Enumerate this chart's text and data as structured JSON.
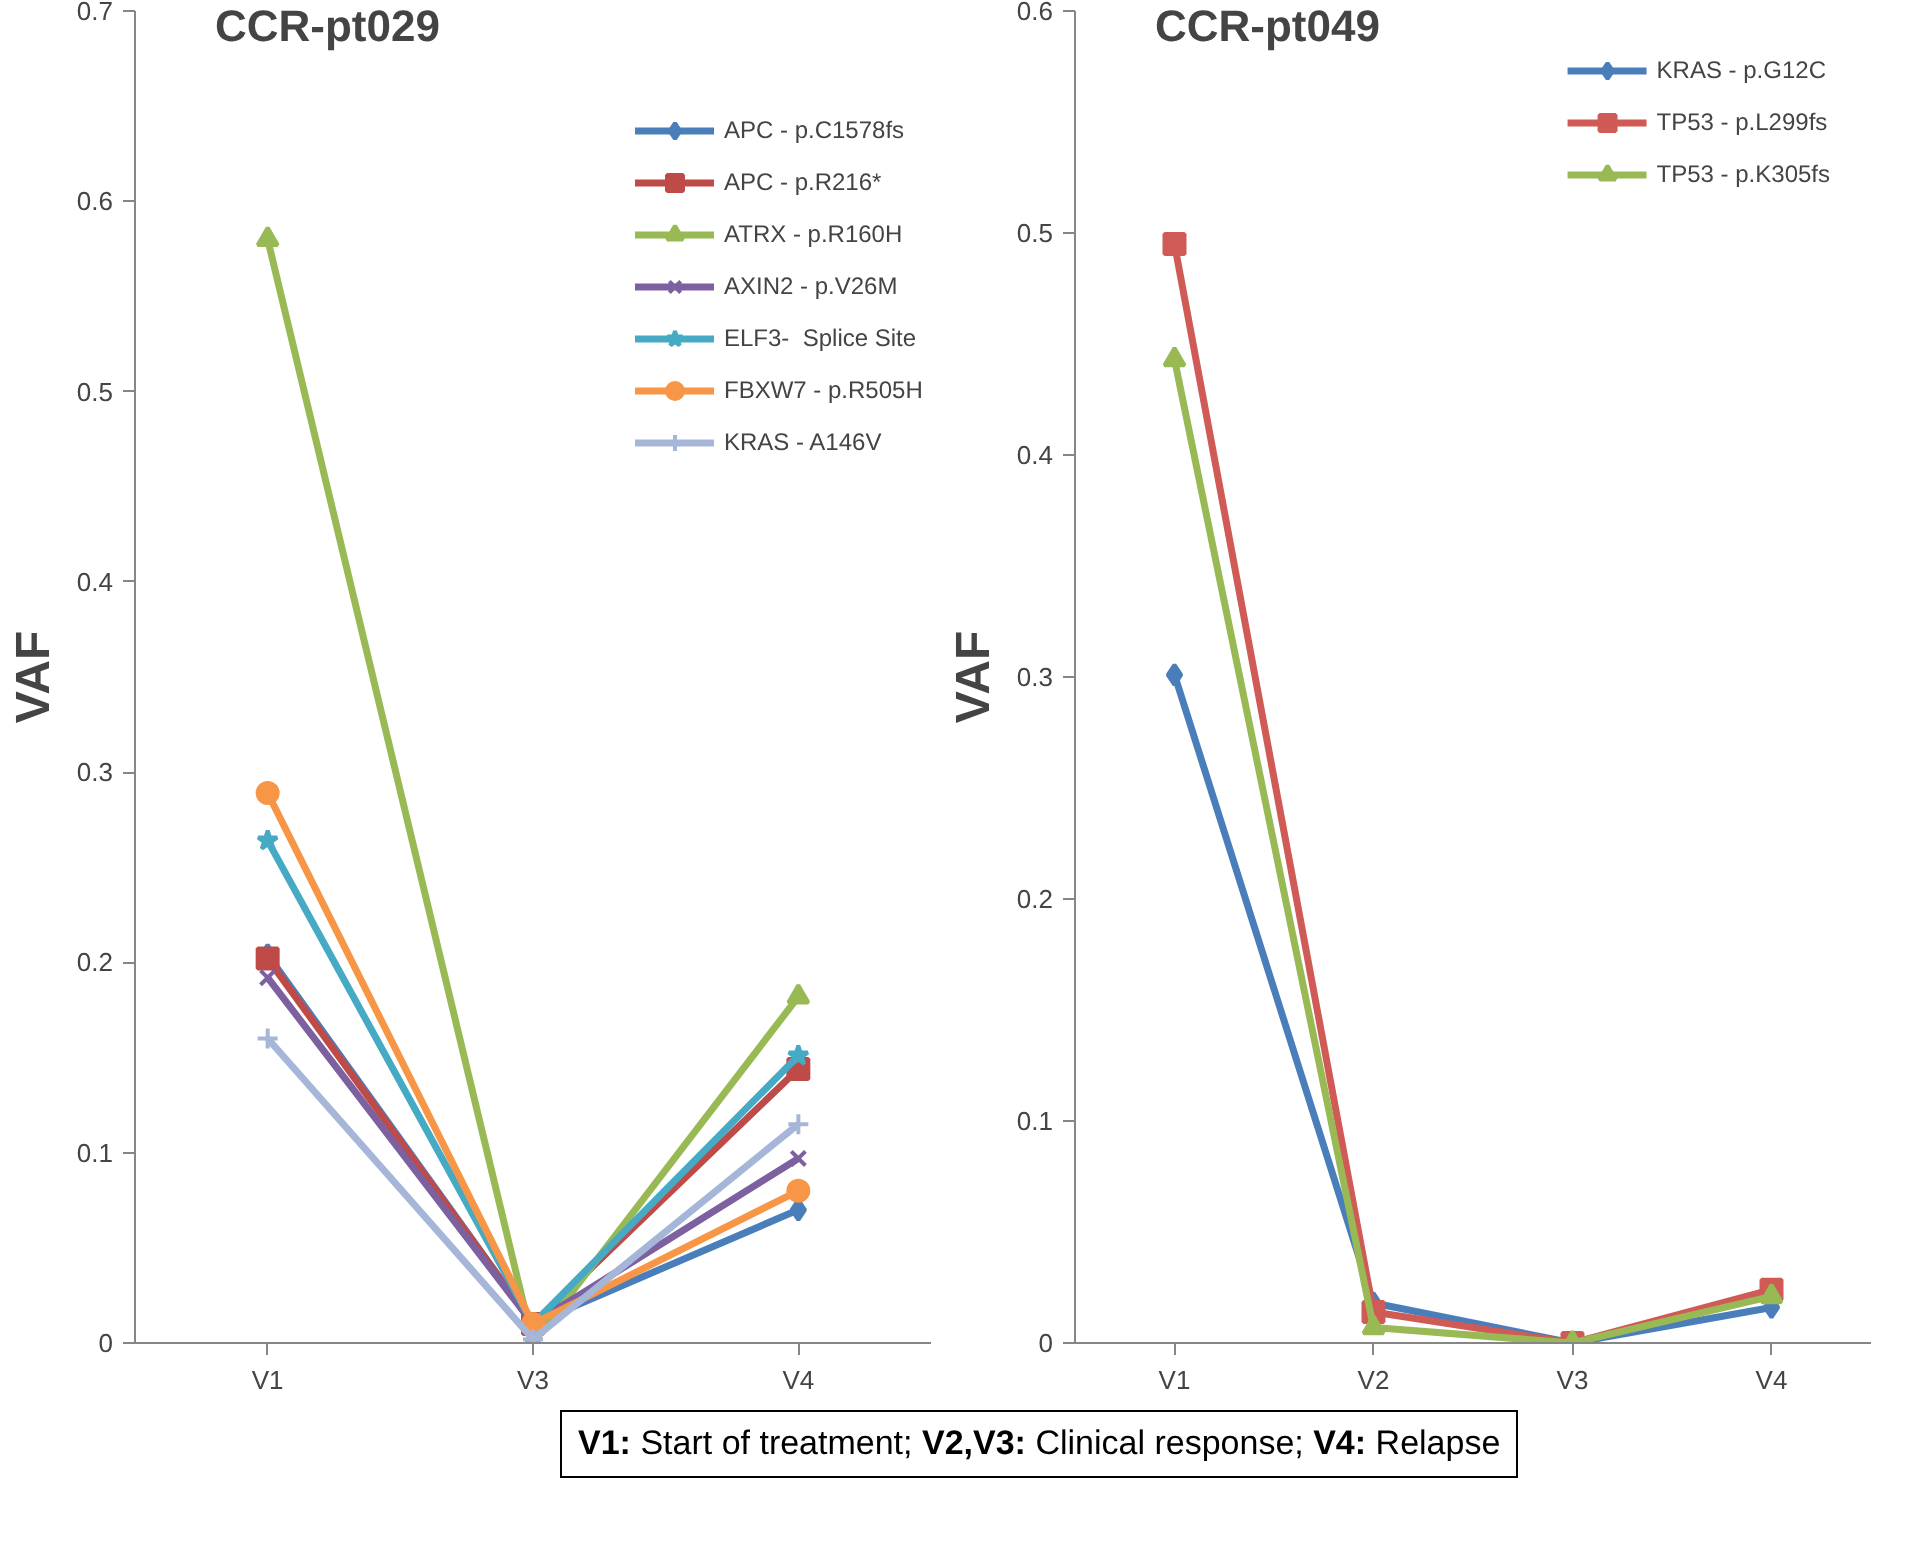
{
  "chart_data": [
    {
      "type": "line",
      "title": "CCR-pt029",
      "ylabel": "VAF",
      "categories": [
        "V1",
        "V3",
        "V4"
      ],
      "ylim": [
        0,
        0.7
      ],
      "yticks": [
        0,
        0.1,
        0.2,
        0.3,
        0.4,
        0.5,
        0.6,
        0.7
      ],
      "grid": false,
      "legend": "right",
      "series": [
        {
          "name": "APC - p.C1578fs",
          "color": "#4a7ebb",
          "marker": "diamond",
          "values": [
            0.204,
            0.01,
            0.07
          ]
        },
        {
          "name": "APC - p.R216*",
          "color": "#be4b48",
          "marker": "square",
          "values": [
            0.202,
            0.01,
            0.144
          ]
        },
        {
          "name": "ATRX - p.R160H",
          "color": "#98b954",
          "marker": "triangle",
          "values": [
            0.58,
            0,
            0.182
          ]
        },
        {
          "name": "AXIN2 - p.V26M",
          "color": "#7d60a0",
          "marker": "x",
          "values": [
            0.192,
            0.01,
            0.097
          ]
        },
        {
          "name": "ELF3-  Splice Site",
          "color": "#46aac5",
          "marker": "star",
          "values": [
            0.264,
            0.01,
            0.151
          ]
        },
        {
          "name": "FBXW7 - p.R505H",
          "color": "#f79646",
          "marker": "circle",
          "values": [
            0.289,
            0.01,
            0.08
          ]
        },
        {
          "name": "KRAS - A146V",
          "color": "#a5b6d9",
          "marker": "cross",
          "values": [
            0.16,
            0.002,
            0.115
          ]
        }
      ]
    },
    {
      "type": "line",
      "title": "CCR-pt049",
      "ylabel": "VAF",
      "categories": [
        "V1",
        "V2",
        "V3",
        "V4"
      ],
      "ylim": [
        0,
        0.6
      ],
      "yticks": [
        0,
        0.1,
        0.2,
        0.3,
        0.4,
        0.5,
        0.6
      ],
      "grid": false,
      "legend": "top right",
      "annotations": [
        "V1: Start of treatment; V2,V3: Clinical response; V4: Relapse"
      ],
      "series": [
        {
          "name": "KRAS - p.G12C",
          "color": "#4a7ebb",
          "marker": "diamond",
          "values": [
            0.301,
            0.018,
            0,
            0.016
          ]
        },
        {
          "name": "TP53 - p.L299fs",
          "color": "#d05a55",
          "marker": "square",
          "values": [
            0.495,
            0.014,
            0,
            0.024
          ]
        },
        {
          "name": "TP53 - p.K305fs",
          "color": "#98b954",
          "marker": "triangle",
          "values": [
            0.443,
            0.007,
            0,
            0.021
          ]
        }
      ]
    }
  ]
}
